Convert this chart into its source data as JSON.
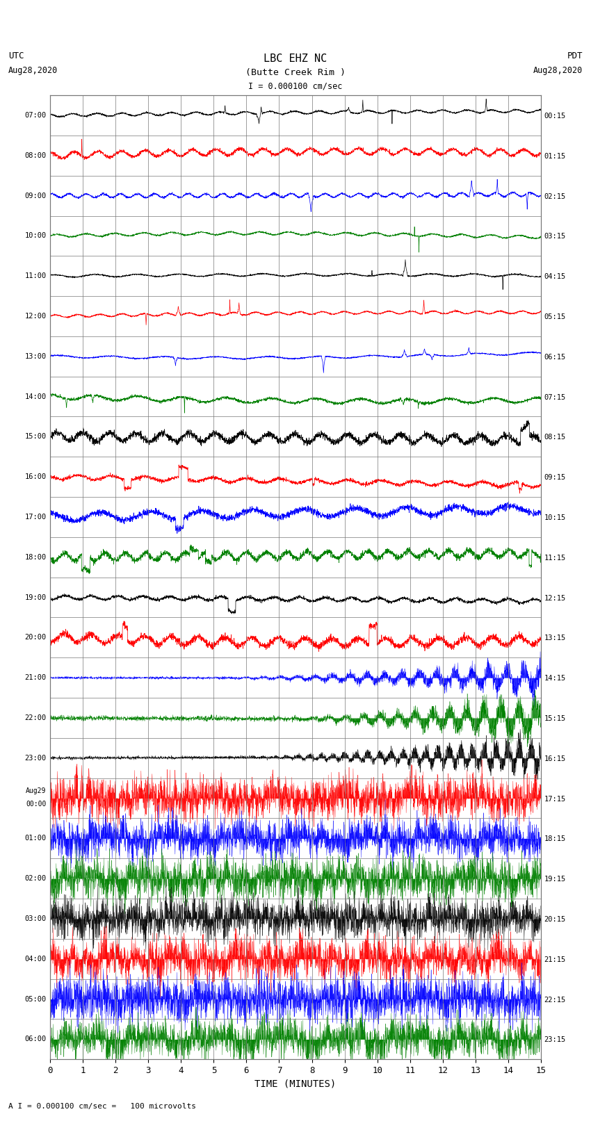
{
  "title_line1": "LBC EHZ NC",
  "title_line2": "(Butte Creek Rim )",
  "scale_text": "I = 0.000100 cm/sec",
  "bottom_label": "A I = 0.000100 cm/sec =   100 microvolts",
  "xlabel": "TIME (MINUTES)",
  "utc_times": [
    "07:00",
    "08:00",
    "09:00",
    "10:00",
    "11:00",
    "12:00",
    "13:00",
    "14:00",
    "15:00",
    "16:00",
    "17:00",
    "18:00",
    "19:00",
    "20:00",
    "21:00",
    "22:00",
    "23:00",
    "Aug29\n00:00",
    "01:00",
    "02:00",
    "03:00",
    "04:00",
    "05:00",
    "06:00"
  ],
  "pdt_times": [
    "00:15",
    "01:15",
    "02:15",
    "03:15",
    "04:15",
    "05:15",
    "06:15",
    "07:15",
    "08:15",
    "09:15",
    "10:15",
    "11:15",
    "12:15",
    "13:15",
    "14:15",
    "15:15",
    "16:15",
    "17:15",
    "18:15",
    "19:15",
    "20:15",
    "21:15",
    "22:15",
    "23:15"
  ],
  "n_rows": 24,
  "n_minutes": 15,
  "bg_color": "white",
  "grid_color": "#777777",
  "text_color": "black",
  "colors": [
    "black",
    "red",
    "blue",
    "green"
  ],
  "figsize": [
    8.5,
    16.13
  ],
  "dpi": 100,
  "n_pts": 3000
}
